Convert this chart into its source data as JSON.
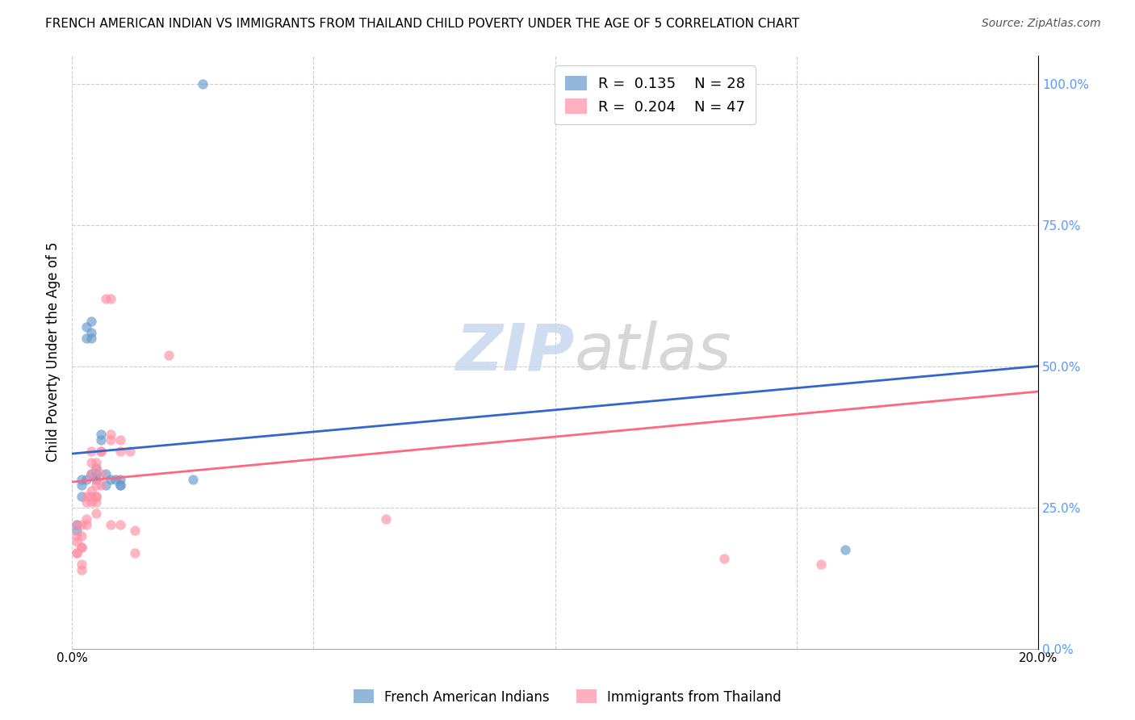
{
  "title": "FRENCH AMERICAN INDIAN VS IMMIGRANTS FROM THAILAND CHILD POVERTY UNDER THE AGE OF 5 CORRELATION CHART",
  "source": "Source: ZipAtlas.com",
  "ylabel": "Child Poverty Under the Age of 5",
  "watermark": "ZIPatlas",
  "legend_blue_r": "0.135",
  "legend_blue_n": "28",
  "legend_pink_r": "0.204",
  "legend_pink_n": "47",
  "legend_blue_label": "French American Indians",
  "legend_pink_label": "Immigrants from Thailand",
  "xlim": [
    0.0,
    0.2
  ],
  "ylim": [
    0.0,
    1.05
  ],
  "xticks": [
    0.0,
    0.05,
    0.1,
    0.15,
    0.2
  ],
  "ytick_labels_right": [
    "100.0%",
    "75.0%",
    "50.0%",
    "25.0%",
    "0.0%"
  ],
  "yticks_right": [
    1.0,
    0.75,
    0.5,
    0.25,
    0.0
  ],
  "blue_color": "#6699CC",
  "pink_color": "#FF8FA3",
  "blue_line_color": "#3366CC",
  "pink_line_color": "#FF6680",
  "blue_line_y0": 0.345,
  "blue_line_y1": 0.5,
  "pink_line_y0": 0.295,
  "pink_line_y1": 0.455,
  "blue_x": [
    0.001,
    0.001,
    0.002,
    0.002,
    0.002,
    0.003,
    0.003,
    0.003,
    0.004,
    0.004,
    0.004,
    0.004,
    0.005,
    0.005,
    0.005,
    0.005,
    0.006,
    0.006,
    0.007,
    0.007,
    0.008,
    0.009,
    0.01,
    0.01,
    0.01,
    0.025,
    0.027,
    0.16
  ],
  "blue_y": [
    0.22,
    0.21,
    0.3,
    0.29,
    0.27,
    0.55,
    0.57,
    0.3,
    0.31,
    0.55,
    0.58,
    0.56,
    0.31,
    0.31,
    0.3,
    0.32,
    0.37,
    0.38,
    0.31,
    0.29,
    0.3,
    0.3,
    0.29,
    0.3,
    0.29,
    0.3,
    1.0,
    0.175
  ],
  "pink_x": [
    0.001,
    0.001,
    0.001,
    0.001,
    0.001,
    0.002,
    0.002,
    0.002,
    0.002,
    0.002,
    0.002,
    0.003,
    0.003,
    0.003,
    0.003,
    0.004,
    0.004,
    0.004,
    0.004,
    0.004,
    0.004,
    0.005,
    0.005,
    0.005,
    0.005,
    0.005,
    0.005,
    0.005,
    0.006,
    0.006,
    0.006,
    0.006,
    0.007,
    0.008,
    0.008,
    0.008,
    0.008,
    0.01,
    0.01,
    0.01,
    0.012,
    0.013,
    0.013,
    0.02,
    0.065,
    0.135,
    0.155
  ],
  "pink_y": [
    0.22,
    0.2,
    0.19,
    0.17,
    0.17,
    0.22,
    0.2,
    0.18,
    0.18,
    0.15,
    0.14,
    0.27,
    0.26,
    0.23,
    0.22,
    0.35,
    0.33,
    0.31,
    0.28,
    0.27,
    0.26,
    0.33,
    0.32,
    0.29,
    0.27,
    0.27,
    0.26,
    0.24,
    0.35,
    0.35,
    0.31,
    0.29,
    0.62,
    0.62,
    0.38,
    0.37,
    0.22,
    0.37,
    0.35,
    0.22,
    0.35,
    0.21,
    0.17,
    0.52,
    0.23,
    0.16,
    0.15
  ],
  "marker_size": 80
}
